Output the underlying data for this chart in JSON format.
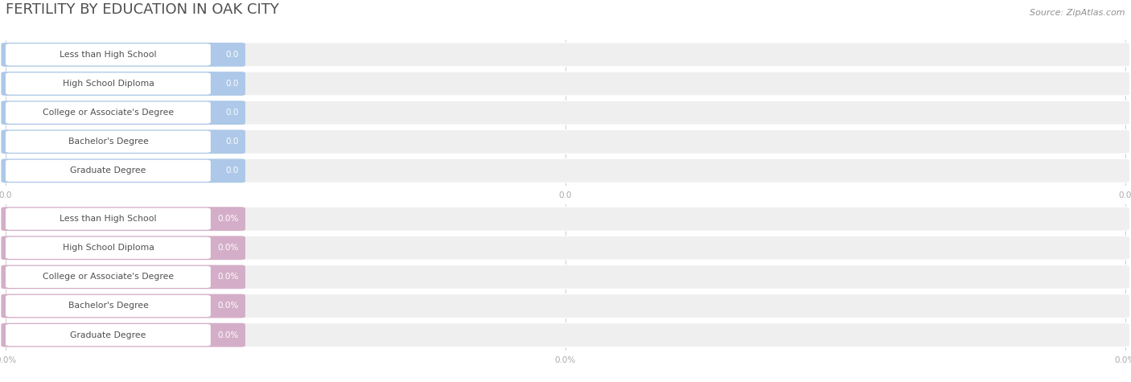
{
  "title": "FERTILITY BY EDUCATION IN OAK CITY",
  "source": "Source: ZipAtlas.com",
  "categories": [
    "Less than High School",
    "High School Diploma",
    "College or Associate's Degree",
    "Bachelor's Degree",
    "Graduate Degree"
  ],
  "section1_values": [
    0.0,
    0.0,
    0.0,
    0.0,
    0.0
  ],
  "section1_labels": [
    "0.0",
    "0.0",
    "0.0",
    "0.0",
    "0.0"
  ],
  "section2_values": [
    0.0,
    0.0,
    0.0,
    0.0,
    0.0
  ],
  "section2_labels": [
    "0.0%",
    "0.0%",
    "0.0%",
    "0.0%",
    "0.0%"
  ],
  "bar_bg_color": "#efefef",
  "bar_fill_color_1": "#adc8e8",
  "bar_fill_color_2": "#d4aec8",
  "white_pill_color": "#ffffff",
  "title_color": "#505050",
  "source_color": "#909090",
  "axis_tick_color": "#aaaaaa",
  "background_color": "#ffffff",
  "figsize": [
    14.06,
    4.75
  ],
  "dpi": 100
}
